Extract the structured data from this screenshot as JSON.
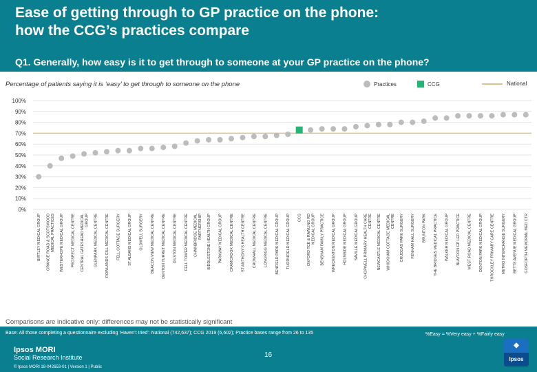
{
  "header": {
    "title_line1": "Ease of getting through to GP practice on the phone:",
    "title_line2": "how the CCG’s practices compare",
    "question": "Q1. Generally, how easy is it to get through to someone at your GP practice on the phone?"
  },
  "chart_subtitle": "Percentage of patients saying it is ‘easy’ to get through to someone on the phone",
  "legend": {
    "practices": "Practices",
    "ccg": "CCG",
    "national": "National"
  },
  "colors": {
    "header_bg": "#0a7f8f",
    "practice_marker": "#bcbcbc",
    "ccg_marker": "#22b573",
    "national_line": "#d9c38f"
  },
  "chart_data": {
    "type": "scatter",
    "y_ticks": [
      "0%",
      "10%",
      "20%",
      "30%",
      "40%",
      "50%",
      "60%",
      "70%",
      "80%",
      "90%",
      "100%"
    ],
    "ylim": [
      0,
      100
    ],
    "national": 70,
    "categories": [
      "BIRTLEY MEDICAL GROUP",
      "GRANGE ROAD & SCOTSWOOD MEDICAL PRACTICES",
      "WESTERHOPE MEDICAL GROUP",
      "PROSPECT MEDICAL CENTRE",
      "CENTRAL GATESHEAD MEDICAL GROUP",
      "GLENPARK MEDICAL CENTRE",
      "ROWLANDS GILL MEDICAL CENTRE",
      "FELL COTTAGE SURGERY",
      "ST ALBANS MEDICAL GROUP",
      "OLDWELL SURGERY",
      "BEACON VIEW MEDICAL CENTRE",
      "DENTON TURRET MEDICAL CENTRE",
      "DILSTON MEDICAL CENTRE",
      "FELL TOWER MEDICAL CENTRE",
      "CHAINBRIDGE MEDICAL PARTNERSHIP",
      "BIDDLESTONE HEALTH GROUP",
      "PARKWAY MEDICAL GROUP",
      "CRAMCROOK MEDICAL CENTRE",
      "ST ANTHONY'S HEALTH CENTRE",
      "CROWHALL MEDICAL CENTRE",
      "LONGRIGG MEDICAL CENTRE",
      "BENFIELD PARK MEDICAL GROUP",
      "THORNFIELD MEDICAL GROUP",
      "CCG",
      "OXFORD TCE & RAWLING RD MEDICAL GROUP",
      "BENSHAM FAMILY PRACTICE",
      "WRECKENTON MEDICAL GROUP",
      "HOLMSIDE MEDICAL GROUP",
      "SAVILLE MEDICAL GROUP",
      "CHOPWELL PRIMARY HEALTH CARE CENTRE",
      "NEWCASTLE MEDICAL CENTRE",
      "WHICKHAM COTTAGE MEDICAL CENTRE",
      "CRUDDAS PARK SURGERY",
      "FENHAM HALL SURGERY",
      "BRUNTON PARK",
      "THE BRIDGES MEDICAL PRACTICE",
      "WALKER MEDICAL GROUP",
      "BLAYDON GP LED PRACTICE",
      "WEST ROAD MEDICAL CENTRE",
      "DENTON PARK MEDICAL GROUP",
      "THROCKLEY PRIMARY CARE CENTRE",
      "METRO INTERCHANGE SURGERY",
      "BETTS AVENUE MEDICAL GROUP",
      "GOSFORTH MEMORIAL MED CTR"
    ],
    "values": [
      30,
      40,
      47,
      49,
      51,
      52,
      53,
      54,
      54,
      56,
      56,
      57,
      58,
      61,
      63,
      64,
      64,
      65,
      66,
      67,
      67,
      68,
      69,
      73,
      73,
      74,
      74,
      74,
      76,
      77,
      78,
      78,
      80,
      80,
      81,
      84,
      84,
      86,
      86,
      86,
      86,
      87,
      87,
      87
    ],
    "ccg_index": 23
  },
  "note": "Comparisons are indicative only: differences may not be statistically significant",
  "footer": {
    "base": "Base: All those completing a questionnaire excluding ‘Haven’t tried’: National (742,637); CCG 2019 (6,602); Practice bases range from 26 to 135",
    "legend_note": "%Easy = %Very easy + %Fairly easy",
    "logo_line1": "Ipsos MORI",
    "logo_line2": "Social Research Institute",
    "copyright": "© Ipsos MORI     18-042653-01 | Version 1 | Public",
    "page_number": "16",
    "badge_top": "◆",
    "badge_bottom": "Ipsos"
  }
}
